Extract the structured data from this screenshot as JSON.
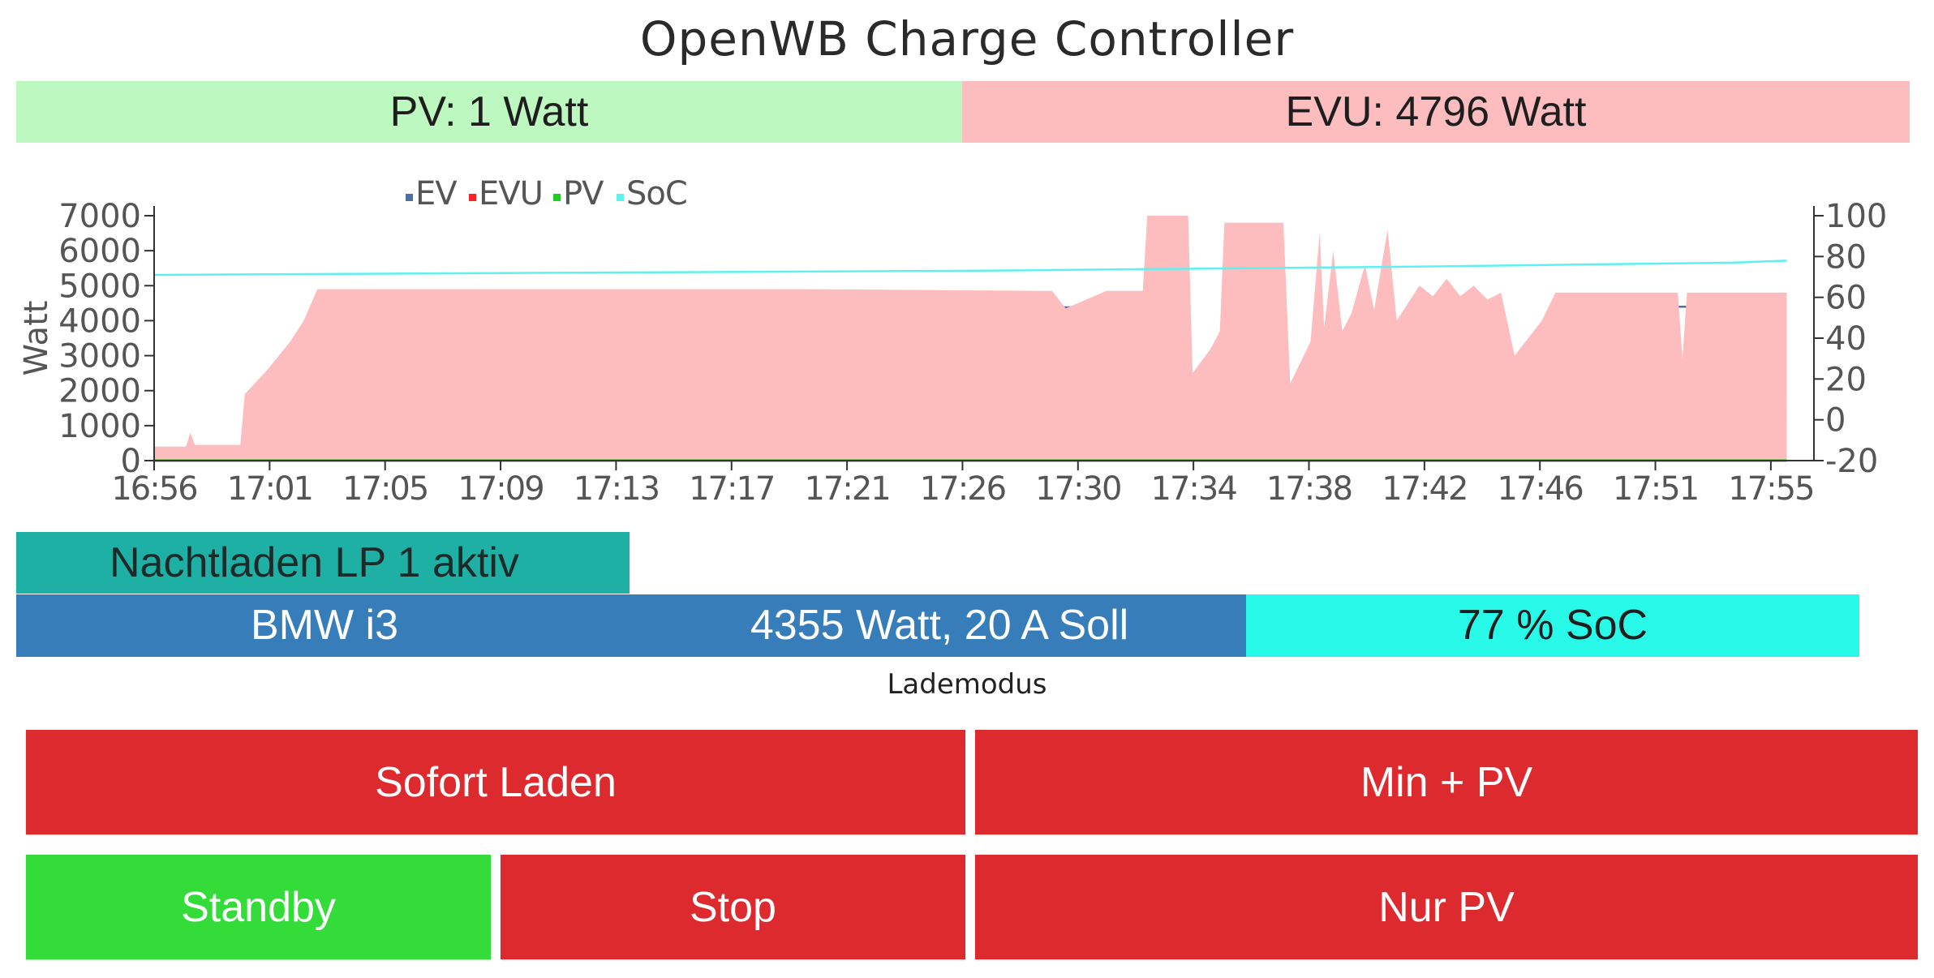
{
  "header": {
    "title": "OpenWB Charge Controller"
  },
  "status": {
    "pv_text": "PV: 1 Watt",
    "evu_text": "EVU: 4796 Watt",
    "pv_color": "#bcf8bf",
    "evu_color": "#fdbcbd"
  },
  "chart_data": {
    "type": "area",
    "title": "",
    "xlabel": "",
    "ylabel": "Watt",
    "ylabel_right": "",
    "ylim": [
      0,
      7000
    ],
    "ylim_right": [
      -20,
      100
    ],
    "yticks": [
      "0",
      "1000",
      "2000",
      "3000",
      "4000",
      "5000",
      "6000",
      "7000"
    ],
    "yticks_right": [
      "-20",
      "0",
      "20",
      "40",
      "60",
      "80",
      "100"
    ],
    "x_tick_labels": [
      "16:56",
      "17:01",
      "17:05",
      "17:09",
      "17:13",
      "17:17",
      "17:21",
      "17:26",
      "17:30",
      "17:34",
      "17:38",
      "17:42",
      "17:46",
      "17:51",
      "17:55"
    ],
    "x_range": [
      "16:56",
      "17:57"
    ],
    "legend_position": "top",
    "grid": false,
    "series": [
      {
        "name": "EV",
        "color": "#4a6fa0",
        "style": "line",
        "points": [
          [
            "16:56",
            0
          ],
          [
            "16:59:10",
            0
          ],
          [
            "16:59:20",
            1300
          ],
          [
            "17:00:10",
            2000
          ],
          [
            "17:01:00",
            2900
          ],
          [
            "17:01:30",
            3500
          ],
          [
            "17:02:00",
            4400
          ],
          [
            "17:10",
            4350
          ],
          [
            "17:20",
            4380
          ],
          [
            "17:30:00",
            4380
          ],
          [
            "17:30:30",
            3800
          ],
          [
            "17:31:00",
            4300
          ],
          [
            "17:33:30",
            4350
          ],
          [
            "17:34:00",
            2200
          ],
          [
            "17:35:00",
            2800
          ],
          [
            "17:35:30",
            4200
          ],
          [
            "17:37:30",
            4200
          ],
          [
            "17:37:45",
            1600
          ],
          [
            "17:38:30",
            2800
          ],
          [
            "17:39:00",
            3400
          ],
          [
            "17:39:30",
            1400
          ],
          [
            "17:40:30",
            2700
          ],
          [
            "17:41:00",
            1400
          ],
          [
            "17:42:00",
            2700
          ],
          [
            "17:42:30",
            2000
          ],
          [
            "17:43:00",
            2400
          ],
          [
            "17:43:30",
            2000
          ],
          [
            "17:44:00",
            2400
          ],
          [
            "17:44:30",
            1900
          ],
          [
            "17:45:00",
            2300
          ],
          [
            "17:46:00",
            2200
          ],
          [
            "17:47:00",
            3500
          ],
          [
            "17:47:30",
            4400
          ],
          [
            "17:56:00",
            4400
          ]
        ]
      },
      {
        "name": "EVU",
        "color": "#ff2222",
        "fill": "#fdbcbd",
        "style": "area",
        "points": [
          [
            "16:56",
            400
          ],
          [
            "16:57:10",
            400
          ],
          [
            "16:57:20",
            800
          ],
          [
            "16:57:30",
            450
          ],
          [
            "16:59:10",
            450
          ],
          [
            "16:59:20",
            1900
          ],
          [
            "17:00:10",
            2600
          ],
          [
            "17:01:00",
            3400
          ],
          [
            "17:01:30",
            4000
          ],
          [
            "17:02:00",
            4900
          ],
          [
            "17:10",
            4900
          ],
          [
            "17:20",
            4900
          ],
          [
            "17:29:00",
            4850
          ],
          [
            "17:29:30",
            4350
          ],
          [
            "17:31:00",
            4850
          ],
          [
            "17:32:20",
            4850
          ],
          [
            "17:32:30",
            7000
          ],
          [
            "17:34:00",
            7000
          ],
          [
            "17:34:10",
            2500
          ],
          [
            "17:34:50",
            3200
          ],
          [
            "17:35:10",
            3700
          ],
          [
            "17:35:20",
            6800
          ],
          [
            "17:37:30",
            6800
          ],
          [
            "17:37:45",
            2200
          ],
          [
            "17:38:30",
            3400
          ],
          [
            "17:38:50",
            6500
          ],
          [
            "17:39:00",
            3800
          ],
          [
            "17:39:20",
            6000
          ],
          [
            "17:39:40",
            3700
          ],
          [
            "17:40:00",
            4200
          ],
          [
            "17:40:30",
            5600
          ],
          [
            "17:40:50",
            4300
          ],
          [
            "17:41:20",
            6600
          ],
          [
            "17:41:40",
            4000
          ],
          [
            "17:42:30",
            5000
          ],
          [
            "17:43:00",
            4700
          ],
          [
            "17:43:30",
            5200
          ],
          [
            "17:44:00",
            4700
          ],
          [
            "17:44:30",
            5000
          ],
          [
            "17:45:00",
            4600
          ],
          [
            "17:45:30",
            4800
          ],
          [
            "17:46:00",
            3000
          ],
          [
            "17:47:00",
            4000
          ],
          [
            "17:47:30",
            4800
          ],
          [
            "17:52:00",
            4800
          ],
          [
            "17:52:10",
            2900
          ],
          [
            "17:52:20",
            4800
          ],
          [
            "17:56:00",
            4800
          ]
        ]
      },
      {
        "name": "PV",
        "color": "#22cc22",
        "style": "line",
        "points": [
          [
            "16:56",
            0
          ],
          [
            "17:56",
            0
          ]
        ]
      },
      {
        "name": "SoC",
        "color": "#5ff0f0",
        "style": "line",
        "axis": "right",
        "points": [
          [
            "16:56",
            71
          ],
          [
            "17:10",
            72
          ],
          [
            "17:26",
            73
          ],
          [
            "17:42",
            75
          ],
          [
            "17:54",
            77
          ],
          [
            "17:56",
            78
          ]
        ]
      }
    ]
  },
  "night_charge": {
    "label": "Nachtladen LP 1 aktiv",
    "color": "#1eafa5"
  },
  "chargepoint": {
    "name": "BMW i3",
    "power_text": "4355 Watt, 20 A Soll",
    "soc_text": "77 % SoC"
  },
  "mode": {
    "label": "Lademodus",
    "buttons": {
      "sofort": "Sofort Laden",
      "minpv": "Min + PV",
      "standby": "Standby",
      "stop": "Stop",
      "nurpv": "Nur PV"
    },
    "active_color": "#34dc3a",
    "inactive_color": "#dc2a2e"
  }
}
